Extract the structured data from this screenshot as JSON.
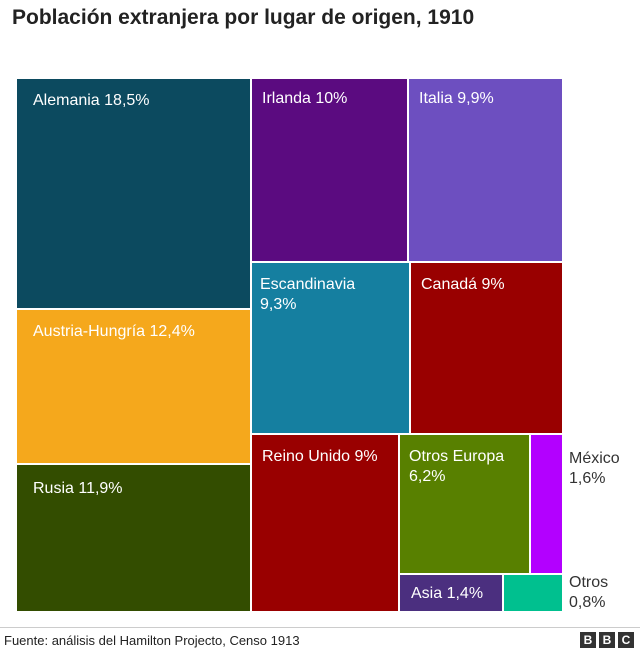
{
  "chart_data": {
    "type": "treemap",
    "title": "Población extranjera por lugar de origen, 1910",
    "items": [
      {
        "name": "Alemania",
        "value": 18.5,
        "label": "Alemania 18,5%",
        "color": "#0c4a5f"
      },
      {
        "name": "Austria-Hungría",
        "value": 12.4,
        "label": "Austria-Hungría 12,4%",
        "color": "#f5a81c"
      },
      {
        "name": "Rusia",
        "value": 11.9,
        "label": "Rusia 11,9%",
        "color": "#334d00"
      },
      {
        "name": "Irlanda",
        "value": 10,
        "label": "Irlanda 10%",
        "color": "#5b0b80"
      },
      {
        "name": "Italia",
        "value": 9.9,
        "label": "Italia 9,9%",
        "color": "#6d4fc0"
      },
      {
        "name": "Escandinavia",
        "value": 9.3,
        "label": "Escandinavia\n9,3%",
        "color": "#157fa0"
      },
      {
        "name": "Canadá",
        "value": 9,
        "label": "Canadá 9%",
        "color": "#990000"
      },
      {
        "name": "Reino Unido",
        "value": 9,
        "label": "Reino Unido 9%",
        "color": "#990000"
      },
      {
        "name": "Otros Europa",
        "value": 6.2,
        "label": "Otros Europa\n6,2%",
        "color": "#588000"
      },
      {
        "name": "México",
        "value": 1.6,
        "label": "México\n1,6%",
        "color": "#b300ff"
      },
      {
        "name": "Asia",
        "value": 1.4,
        "label": "Asia 1,4%",
        "color": "#4b2f7f"
      },
      {
        "name": "Otros",
        "value": 0.8,
        "label": "Otros\n0,8%",
        "color": "#00c08f"
      }
    ]
  },
  "footer": {
    "source": "Fuente: análisis del Hamilton Projecto, Censo 1913",
    "logo": [
      "B",
      "B",
      "C"
    ]
  }
}
